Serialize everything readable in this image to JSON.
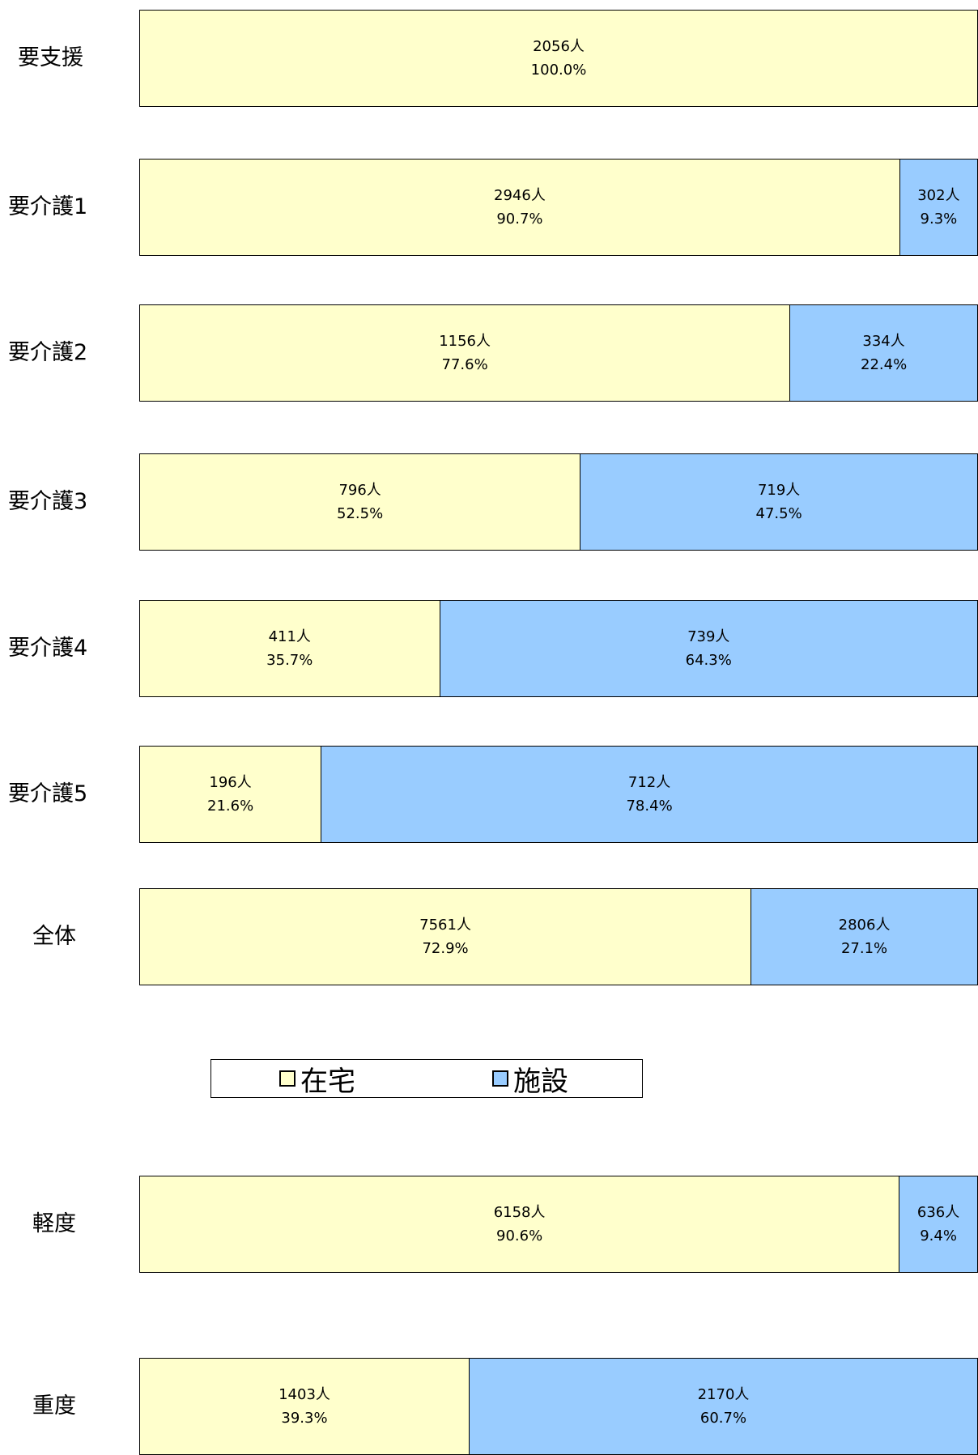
{
  "chart_data": [
    {
      "type": "bar",
      "orientation": "horizontal",
      "stacked": true,
      "categories": [
        "要支援",
        "要介護1",
        "要介護2",
        "要介護3",
        "要介護4",
        "要介護5",
        "全体"
      ],
      "series": [
        {
          "name": "在宅",
          "values": [
            2056,
            2946,
            1156,
            796,
            411,
            196,
            7561
          ],
          "labels": [
            "2056人",
            "2946人",
            "1156人",
            "796人",
            "411人",
            "196人",
            "7561人"
          ],
          "percents": [
            "100.0%",
            "90.7%",
            "77.6%",
            "52.5%",
            "35.7%",
            "21.6%",
            "72.9%"
          ],
          "color": "#ffffcc"
        },
        {
          "name": "施設",
          "values": [
            0,
            302,
            334,
            719,
            739,
            712,
            2806
          ],
          "labels": [
            "",
            "302人",
            "334人",
            "719人",
            "739人",
            "712人",
            "2806人"
          ],
          "percents": [
            "",
            "9.3%",
            "22.4%",
            "47.5%",
            "64.3%",
            "78.4%",
            "27.1%"
          ],
          "color": "#99ccff"
        }
      ],
      "legend": "bottom"
    },
    {
      "type": "bar",
      "orientation": "horizontal",
      "stacked": true,
      "categories": [
        "軽度",
        "重度"
      ],
      "series": [
        {
          "name": "在宅",
          "values": [
            6158,
            1403
          ],
          "labels": [
            "6158人",
            "1403人"
          ],
          "percents": [
            "90.6%",
            "39.3%"
          ],
          "color": "#ffffcc"
        },
        {
          "name": "施設",
          "values": [
            636,
            2170
          ],
          "labels": [
            "636人",
            "2170人"
          ],
          "percents": [
            "9.4%",
            "60.7%"
          ],
          "color": "#99ccff"
        }
      ]
    }
  ],
  "legend": {
    "items": [
      {
        "label": "在宅",
        "color": "#ffffcc"
      },
      {
        "label": "施設",
        "color": "#99ccff"
      }
    ]
  }
}
